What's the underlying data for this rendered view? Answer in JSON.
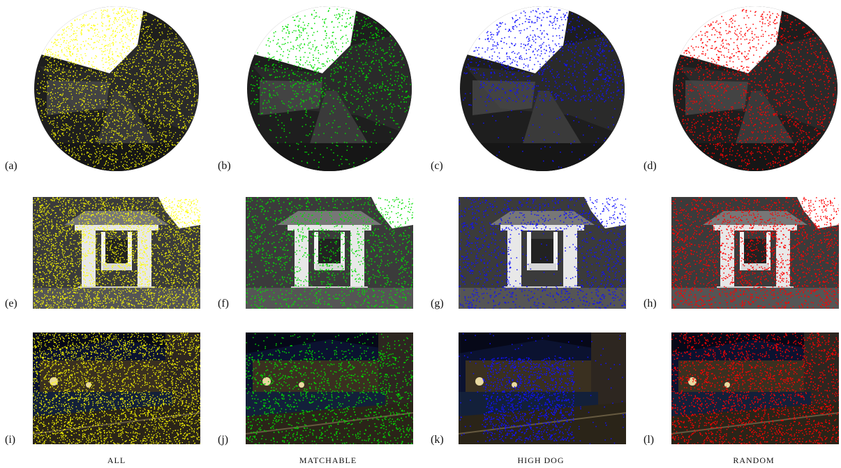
{
  "panel_labels": [
    "(a)",
    "(b)",
    "(c)",
    "(d)",
    "(e)",
    "(f)",
    "(g)",
    "(h)",
    "(i)",
    "(j)",
    "(k)",
    "(l)"
  ],
  "column_labels": [
    "ALL",
    "MATCHABLE",
    "HIGH DOG",
    "RANDOM"
  ],
  "colors": {
    "all": "#ffff00",
    "matchable": "#00e000",
    "high_dog": "#1010ff",
    "random": "#ff0000"
  }
}
